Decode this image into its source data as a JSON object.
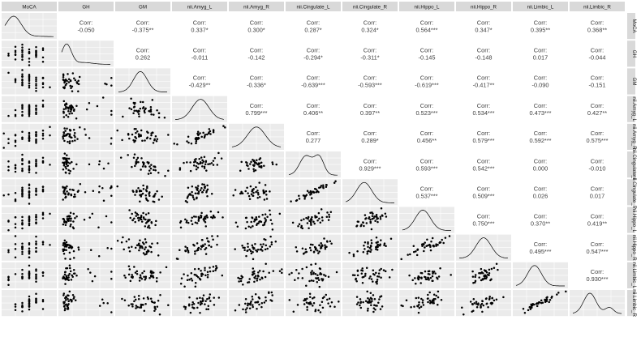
{
  "colors": {
    "panel_bg": "#ebebeb",
    "strip_bg": "#d9d9d9",
    "grid": "#ffffff",
    "point": "#000000",
    "text": "#404040"
  },
  "chart_data": {
    "type": "scatter",
    "kind": "pairs-plot matrix (scatter below diagonal, density on diagonal, correlations above diagonal)",
    "variables": [
      "MoCA",
      "GH",
      "GM",
      "nii.Amyg_L",
      "nii.Amyg_R",
      "nii.Cingulate_L",
      "nii.Cingulate_R",
      "nii.Hippo_L",
      "nii.Hippo_R",
      "nii.Limbic_L",
      "nii.Limbic_R"
    ],
    "right_strip_labels": [
      "MoCA",
      "GH",
      "GM",
      "nii.Amyg_L",
      "nii.Amyg_R",
      "nii.Cingulate_L",
      "nii.Cingulate_R",
      "nii.Hippo_L",
      "nii.Hippo_R",
      "nii.Limbic_L",
      "nii.Limbic_R"
    ],
    "corr_label": "Corr:",
    "correlations": [
      {
        "row": 0,
        "col": 1,
        "value": "-0.050"
      },
      {
        "row": 0,
        "col": 2,
        "value": "-0.375**"
      },
      {
        "row": 0,
        "col": 3,
        "value": "0.337*"
      },
      {
        "row": 0,
        "col": 4,
        "value": "0.300*"
      },
      {
        "row": 0,
        "col": 5,
        "value": "0.287*"
      },
      {
        "row": 0,
        "col": 6,
        "value": "0.324*"
      },
      {
        "row": 0,
        "col": 7,
        "value": "0.564***"
      },
      {
        "row": 0,
        "col": 8,
        "value": "0.347*"
      },
      {
        "row": 0,
        "col": 9,
        "value": "0.395**"
      },
      {
        "row": 0,
        "col": 10,
        "value": "0.368**"
      },
      {
        "row": 1,
        "col": 2,
        "value": "0.262"
      },
      {
        "row": 1,
        "col": 3,
        "value": "-0.011"
      },
      {
        "row": 1,
        "col": 4,
        "value": "-0.142"
      },
      {
        "row": 1,
        "col": 5,
        "value": "-0.294*"
      },
      {
        "row": 1,
        "col": 6,
        "value": "-0.311*"
      },
      {
        "row": 1,
        "col": 7,
        "value": "-0.145"
      },
      {
        "row": 1,
        "col": 8,
        "value": "-0.148"
      },
      {
        "row": 1,
        "col": 9,
        "value": "0.017"
      },
      {
        "row": 1,
        "col": 10,
        "value": "-0.044"
      },
      {
        "row": 2,
        "col": 3,
        "value": "-0.429**"
      },
      {
        "row": 2,
        "col": 4,
        "value": "-0.336*"
      },
      {
        "row": 2,
        "col": 5,
        "value": "-0.639***"
      },
      {
        "row": 2,
        "col": 6,
        "value": "-0.593***"
      },
      {
        "row": 2,
        "col": 7,
        "value": "-0.619***"
      },
      {
        "row": 2,
        "col": 8,
        "value": "-0.417**"
      },
      {
        "row": 2,
        "col": 9,
        "value": "-0.090"
      },
      {
        "row": 2,
        "col": 10,
        "value": "-0.151"
      },
      {
        "row": 3,
        "col": 4,
        "value": "0.799***"
      },
      {
        "row": 3,
        "col": 5,
        "value": "0.406**"
      },
      {
        "row": 3,
        "col": 6,
        "value": "0.397**"
      },
      {
        "row": 3,
        "col": 7,
        "value": "0.523***"
      },
      {
        "row": 3,
        "col": 8,
        "value": "0.534***"
      },
      {
        "row": 3,
        "col": 9,
        "value": "0.473***"
      },
      {
        "row": 3,
        "col": 10,
        "value": "0.427**"
      },
      {
        "row": 4,
        "col": 5,
        "value": "0.277"
      },
      {
        "row": 4,
        "col": 6,
        "value": "0.289*"
      },
      {
        "row": 4,
        "col": 7,
        "value": "0.456**"
      },
      {
        "row": 4,
        "col": 8,
        "value": "0.579***"
      },
      {
        "row": 4,
        "col": 9,
        "value": "0.592***"
      },
      {
        "row": 4,
        "col": 10,
        "value": "0.575***"
      },
      {
        "row": 5,
        "col": 6,
        "value": "0.929***"
      },
      {
        "row": 5,
        "col": 7,
        "value": "0.593***"
      },
      {
        "row": 5,
        "col": 8,
        "value": "0.542***"
      },
      {
        "row": 5,
        "col": 9,
        "value": "0.000"
      },
      {
        "row": 5,
        "col": 10,
        "value": "-0.010"
      },
      {
        "row": 6,
        "col": 7,
        "value": "0.537***"
      },
      {
        "row": 6,
        "col": 8,
        "value": "0.509***"
      },
      {
        "row": 6,
        "col": 9,
        "value": "0.026"
      },
      {
        "row": 6,
        "col": 10,
        "value": "0.017"
      },
      {
        "row": 7,
        "col": 8,
        "value": "0.750***"
      },
      {
        "row": 7,
        "col": 9,
        "value": "0.370**"
      },
      {
        "row": 7,
        "col": 10,
        "value": "0.419**"
      },
      {
        "row": 8,
        "col": 9,
        "value": "0.495***"
      },
      {
        "row": 8,
        "col": 10,
        "value": "0.547***"
      },
      {
        "row": 9,
        "col": 10,
        "value": "0.930***"
      }
    ],
    "grid": true,
    "axis_ticks_shown": false
  }
}
